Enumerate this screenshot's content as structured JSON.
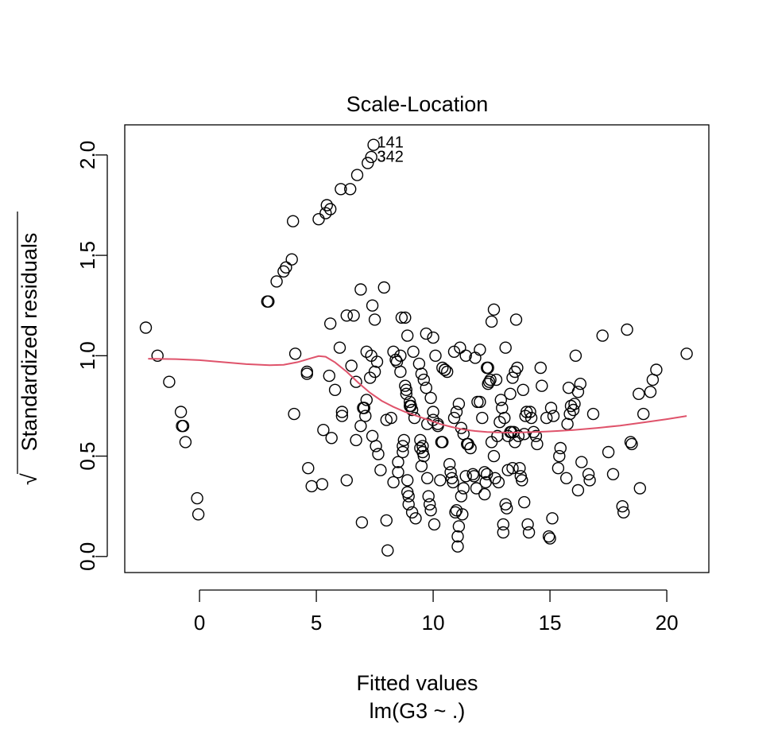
{
  "chart_data": {
    "type": "scatter",
    "title": "Scale-Location",
    "xlabel": "Fitted values",
    "sublabel": "lm(G3 ~ .)",
    "ylabel": "Standardized residuals",
    "ylabel_prefix": "√",
    "xlim": [
      -3.2,
      21.8
    ],
    "ylim": [
      -0.08,
      2.15
    ],
    "xticks": [
      0,
      5,
      10,
      15,
      20
    ],
    "yticks": [
      0.0,
      0.5,
      1.0,
      1.5,
      2.0
    ],
    "xtick_labels": [
      "0",
      "5",
      "10",
      "15",
      "20"
    ],
    "ytick_labels": [
      "0.0",
      "0.5",
      "1.0",
      "1.5",
      "2.0"
    ],
    "grid": false,
    "legend": "none",
    "smooth_color": "#DF536B",
    "point_labels": [
      {
        "text": "141",
        "x": 7.6,
        "y": 2.06
      },
      {
        "text": "342",
        "x": 7.6,
        "y": 1.99
      },
      {
        "text": "3",
        "x": 7.6,
        "y": 1.99
      }
    ],
    "points": [
      [
        -2.3,
        1.14
      ],
      [
        -1.8,
        1.0
      ],
      [
        -1.3,
        0.87
      ],
      [
        -0.8,
        0.72
      ],
      [
        -0.7,
        0.65
      ],
      [
        -0.75,
        0.65
      ],
      [
        -0.6,
        0.57
      ],
      [
        -0.1,
        0.29
      ],
      [
        -0.05,
        0.21
      ],
      [
        2.9,
        1.27
      ],
      [
        2.95,
        1.27
      ],
      [
        3.3,
        1.37
      ],
      [
        3.6,
        1.42
      ],
      [
        3.7,
        1.44
      ],
      [
        3.95,
        1.48
      ],
      [
        4.0,
        1.67
      ],
      [
        4.1,
        1.01
      ],
      [
        4.05,
        0.71
      ],
      [
        4.6,
        0.92
      ],
      [
        4.6,
        0.91
      ],
      [
        4.65,
        0.44
      ],
      [
        4.8,
        0.35
      ],
      [
        5.1,
        1.68
      ],
      [
        5.3,
        0.63
      ],
      [
        5.25,
        0.36
      ],
      [
        5.4,
        1.71
      ],
      [
        5.45,
        1.75
      ],
      [
        5.55,
        0.9
      ],
      [
        5.6,
        1.73
      ],
      [
        5.6,
        1.16
      ],
      [
        5.65,
        0.59
      ],
      [
        5.8,
        0.83
      ],
      [
        6.05,
        1.83
      ],
      [
        6.0,
        1.04
      ],
      [
        6.1,
        0.72
      ],
      [
        6.1,
        0.7
      ],
      [
        6.3,
        0.38
      ],
      [
        6.3,
        1.2
      ],
      [
        6.45,
        1.83
      ],
      [
        6.5,
        0.95
      ],
      [
        6.6,
        1.2
      ],
      [
        6.7,
        0.87
      ],
      [
        6.7,
        0.58
      ],
      [
        6.75,
        1.9
      ],
      [
        6.9,
        1.33
      ],
      [
        6.9,
        0.65
      ],
      [
        6.95,
        0.17
      ],
      [
        7.0,
        0.74
      ],
      [
        7.05,
        0.74
      ],
      [
        7.1,
        0.7
      ],
      [
        7.15,
        0.78
      ],
      [
        7.15,
        1.02
      ],
      [
        7.2,
        1.96
      ],
      [
        7.3,
        0.89
      ],
      [
        7.35,
        1.0
      ],
      [
        7.35,
        1.99
      ],
      [
        7.4,
        1.25
      ],
      [
        7.4,
        0.6
      ],
      [
        7.45,
        2.05
      ],
      [
        7.5,
        1.18
      ],
      [
        7.5,
        0.92
      ],
      [
        7.55,
        0.55
      ],
      [
        7.6,
        0.97
      ],
      [
        7.65,
        0.51
      ],
      [
        7.75,
        0.43
      ],
      [
        7.9,
        1.34
      ],
      [
        8.0,
        0.68
      ],
      [
        8.0,
        0.18
      ],
      [
        8.05,
        0.03
      ],
      [
        8.2,
        0.69
      ],
      [
        8.3,
        1.02
      ],
      [
        8.3,
        0.37
      ],
      [
        8.4,
        0.98
      ],
      [
        8.45,
        0.97
      ],
      [
        8.5,
        0.47
      ],
      [
        8.5,
        0.42
      ],
      [
        8.6,
        1.0
      ],
      [
        8.6,
        0.92
      ],
      [
        8.65,
        1.19
      ],
      [
        8.7,
        0.52
      ],
      [
        8.7,
        0.55
      ],
      [
        8.75,
        0.58
      ],
      [
        8.8,
        1.19
      ],
      [
        8.8,
        0.85
      ],
      [
        8.85,
        0.83
      ],
      [
        8.85,
        0.81
      ],
      [
        8.9,
        1.1
      ],
      [
        8.9,
        0.38
      ],
      [
        8.9,
        0.32
      ],
      [
        8.95,
        0.3
      ],
      [
        8.95,
        0.26
      ],
      [
        9.0,
        0.77
      ],
      [
        9.0,
        0.75
      ],
      [
        9.05,
        0.75
      ],
      [
        9.1,
        0.73
      ],
      [
        9.1,
        0.22
      ],
      [
        9.15,
        1.02
      ],
      [
        9.2,
        0.69
      ],
      [
        9.25,
        0.19
      ],
      [
        9.4,
        0.96
      ],
      [
        9.45,
        0.58
      ],
      [
        9.45,
        0.54
      ],
      [
        9.5,
        0.91
      ],
      [
        9.5,
        0.45
      ],
      [
        9.55,
        0.55
      ],
      [
        9.55,
        0.52
      ],
      [
        9.6,
        0.5
      ],
      [
        9.6,
        0.88
      ],
      [
        9.7,
        1.11
      ],
      [
        9.7,
        0.84
      ],
      [
        9.75,
        0.66
      ],
      [
        9.75,
        0.39
      ],
      [
        9.8,
        0.3
      ],
      [
        9.85,
        0.26
      ],
      [
        9.9,
        0.79
      ],
      [
        9.9,
        0.23
      ],
      [
        10.0,
        1.09
      ],
      [
        10.0,
        0.72
      ],
      [
        10.0,
        0.68
      ],
      [
        10.05,
        0.16
      ],
      [
        10.1,
        1.0
      ],
      [
        10.2,
        0.66
      ],
      [
        10.2,
        0.65
      ],
      [
        10.3,
        0.38
      ],
      [
        10.35,
        0.57
      ],
      [
        10.4,
        0.94
      ],
      [
        10.4,
        0.57
      ],
      [
        10.5,
        0.93
      ],
      [
        10.5,
        0.93
      ],
      [
        10.6,
        0.92
      ],
      [
        10.7,
        0.46
      ],
      [
        10.75,
        0.42
      ],
      [
        10.8,
        0.39
      ],
      [
        10.85,
        0.37
      ],
      [
        10.9,
        0.69
      ],
      [
        10.9,
        1.02
      ],
      [
        10.95,
        0.22
      ],
      [
        11.0,
        0.23
      ],
      [
        11.0,
        0.72
      ],
      [
        11.05,
        0.1
      ],
      [
        11.05,
        0.05
      ],
      [
        11.1,
        0.76
      ],
      [
        11.1,
        0.15
      ],
      [
        11.15,
        1.04
      ],
      [
        11.2,
        0.64
      ],
      [
        11.2,
        0.3
      ],
      [
        11.25,
        0.21
      ],
      [
        11.3,
        0.34
      ],
      [
        11.3,
        0.61
      ],
      [
        11.4,
        0.4
      ],
      [
        11.4,
        1.0
      ],
      [
        11.45,
        0.56
      ],
      [
        11.5,
        0.56
      ],
      [
        11.6,
        0.54
      ],
      [
        11.7,
        0.41
      ],
      [
        11.75,
        0.4
      ],
      [
        11.8,
        0.99
      ],
      [
        11.85,
        0.34
      ],
      [
        11.9,
        0.77
      ],
      [
        12.0,
        0.77
      ],
      [
        12.0,
        1.03
      ],
      [
        12.1,
        0.69
      ],
      [
        12.2,
        0.31
      ],
      [
        12.2,
        0.42
      ],
      [
        12.25,
        0.37
      ],
      [
        12.3,
        0.41
      ],
      [
        12.3,
        0.94
      ],
      [
        12.35,
        0.94
      ],
      [
        12.35,
        0.86
      ],
      [
        12.4,
        0.87
      ],
      [
        12.45,
        0.88
      ],
      [
        12.5,
        0.57
      ],
      [
        12.5,
        1.17
      ],
      [
        12.6,
        0.5
      ],
      [
        12.6,
        1.23
      ],
      [
        12.65,
        0.39
      ],
      [
        12.7,
        0.88
      ],
      [
        12.75,
        0.6
      ],
      [
        12.8,
        0.37
      ],
      [
        12.85,
        0.67
      ],
      [
        12.9,
        0.78
      ],
      [
        12.95,
        0.74
      ],
      [
        13.0,
        0.16
      ],
      [
        13.0,
        0.12
      ],
      [
        13.05,
        0.69
      ],
      [
        13.1,
        1.04
      ],
      [
        13.1,
        0.26
      ],
      [
        13.15,
        0.24
      ],
      [
        13.2,
        0.43
      ],
      [
        13.2,
        0.6
      ],
      [
        13.3,
        0.62
      ],
      [
        13.3,
        0.81
      ],
      [
        13.35,
        0.62
      ],
      [
        13.4,
        0.44
      ],
      [
        13.4,
        0.89
      ],
      [
        13.45,
        0.62
      ],
      [
        13.5,
        0.57
      ],
      [
        13.5,
        0.92
      ],
      [
        13.55,
        1.18
      ],
      [
        13.6,
        0.94
      ],
      [
        13.65,
        0.6
      ],
      [
        13.7,
        0.44
      ],
      [
        13.75,
        0.4
      ],
      [
        13.8,
        0.38
      ],
      [
        13.85,
        0.83
      ],
      [
        13.9,
        0.27
      ],
      [
        13.9,
        0.61
      ],
      [
        13.95,
        0.7
      ],
      [
        14.0,
        0.72
      ],
      [
        14.05,
        0.16
      ],
      [
        14.1,
        0.12
      ],
      [
        14.15,
        0.72
      ],
      [
        14.2,
        0.69
      ],
      [
        14.3,
        0.62
      ],
      [
        14.4,
        0.6
      ],
      [
        14.45,
        0.56
      ],
      [
        14.6,
        0.94
      ],
      [
        14.65,
        0.85
      ],
      [
        14.85,
        0.69
      ],
      [
        14.95,
        0.1
      ],
      [
        15.0,
        0.09
      ],
      [
        15.05,
        0.74
      ],
      [
        15.1,
        0.19
      ],
      [
        15.15,
        0.7
      ],
      [
        15.35,
        0.44
      ],
      [
        15.4,
        0.5
      ],
      [
        15.45,
        0.54
      ],
      [
        15.7,
        0.39
      ],
      [
        15.75,
        0.66
      ],
      [
        15.8,
        0.84
      ],
      [
        15.85,
        0.71
      ],
      [
        15.9,
        0.75
      ],
      [
        16.0,
        0.73
      ],
      [
        16.05,
        0.76
      ],
      [
        16.1,
        1.0
      ],
      [
        16.2,
        0.33
      ],
      [
        16.2,
        0.82
      ],
      [
        16.3,
        0.86
      ],
      [
        16.35,
        0.47
      ],
      [
        16.65,
        0.41
      ],
      [
        16.7,
        0.38
      ],
      [
        16.85,
        0.71
      ],
      [
        17.25,
        1.1
      ],
      [
        17.5,
        0.52
      ],
      [
        17.7,
        0.41
      ],
      [
        18.1,
        0.25
      ],
      [
        18.15,
        0.22
      ],
      [
        18.3,
        1.13
      ],
      [
        18.45,
        0.57
      ],
      [
        18.5,
        0.56
      ],
      [
        18.8,
        0.81
      ],
      [
        18.85,
        0.34
      ],
      [
        19.0,
        0.71
      ],
      [
        19.3,
        0.82
      ],
      [
        19.4,
        0.88
      ],
      [
        19.55,
        0.93
      ],
      [
        20.85,
        1.01
      ]
    ],
    "smooth": [
      [
        -2.2,
        0.985
      ],
      [
        -1.0,
        0.983
      ],
      [
        0.0,
        0.978
      ],
      [
        1.0,
        0.968
      ],
      [
        2.0,
        0.958
      ],
      [
        3.0,
        0.953
      ],
      [
        3.6,
        0.955
      ],
      [
        4.2,
        0.968
      ],
      [
        4.7,
        0.985
      ],
      [
        5.1,
        0.998
      ],
      [
        5.4,
        0.995
      ],
      [
        5.8,
        0.967
      ],
      [
        6.3,
        0.92
      ],
      [
        6.8,
        0.865
      ],
      [
        7.3,
        0.815
      ],
      [
        7.8,
        0.775
      ],
      [
        8.3,
        0.745
      ],
      [
        8.8,
        0.72
      ],
      [
        9.3,
        0.7
      ],
      [
        9.8,
        0.68
      ],
      [
        10.3,
        0.66
      ],
      [
        10.8,
        0.645
      ],
      [
        11.3,
        0.632
      ],
      [
        11.8,
        0.625
      ],
      [
        12.3,
        0.62
      ],
      [
        12.8,
        0.618
      ],
      [
        13.3,
        0.617
      ],
      [
        13.8,
        0.618
      ],
      [
        14.3,
        0.62
      ],
      [
        14.8,
        0.622
      ],
      [
        15.3,
        0.625
      ],
      [
        16.0,
        0.63
      ],
      [
        17.0,
        0.64
      ],
      [
        18.0,
        0.652
      ],
      [
        19.0,
        0.668
      ],
      [
        20.0,
        0.684
      ],
      [
        20.85,
        0.7
      ]
    ]
  }
}
